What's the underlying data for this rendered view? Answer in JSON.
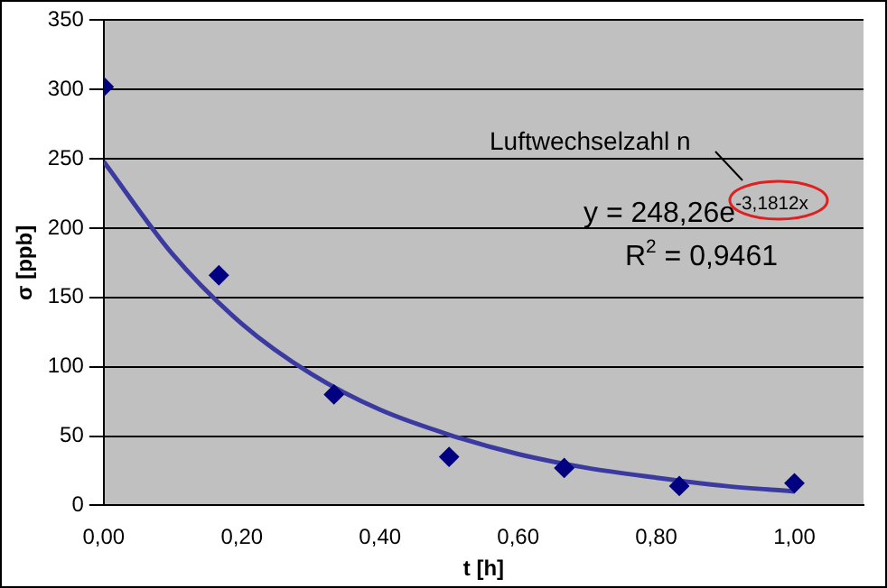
{
  "chart_data": {
    "type": "scatter",
    "xlabel": "t [h]",
    "ylabel": "σ [ppb]",
    "xlim": [
      0,
      1.1
    ],
    "xticks": [
      {
        "value": 0,
        "label": "0,00"
      },
      {
        "value": 0.2,
        "label": "0,20"
      },
      {
        "value": 0.4,
        "label": "0,40"
      },
      {
        "value": 0.6,
        "label": "0,60"
      },
      {
        "value": 0.8,
        "label": "0,80"
      },
      {
        "value": 1,
        "label": "1,00"
      }
    ],
    "ylim": [
      0,
      350
    ],
    "yticks": [
      0,
      50,
      100,
      150,
      200,
      250,
      300,
      350
    ],
    "grid": "y",
    "marker": "diamond",
    "annotations": [
      "Luftwechselzahl n",
      "y = 248,26e$^{-3,1812x}$",
      "R$^{2}$ = 0,9461"
    ],
    "series": [
      {
        "type": "scatter",
        "color": "#000080",
        "x": [
          0,
          0.1667,
          0.3333,
          0.5,
          0.6667,
          0.8333,
          1
        ],
        "values": [
          302,
          166,
          80,
          35,
          27,
          14,
          16
        ]
      },
      {
        "type": "line",
        "color": "#3a3aa0",
        "marker": "none",
        "line_style": "solid",
        "x": [
          0,
          0.1,
          0.2,
          0.3,
          0.4,
          0.5,
          0.6,
          0.7,
          0.8,
          0.9,
          1
        ],
        "values": [
          248,
          181,
          131,
          95,
          69,
          51,
          37,
          27,
          20,
          14,
          10
        ]
      }
    ]
  }
}
